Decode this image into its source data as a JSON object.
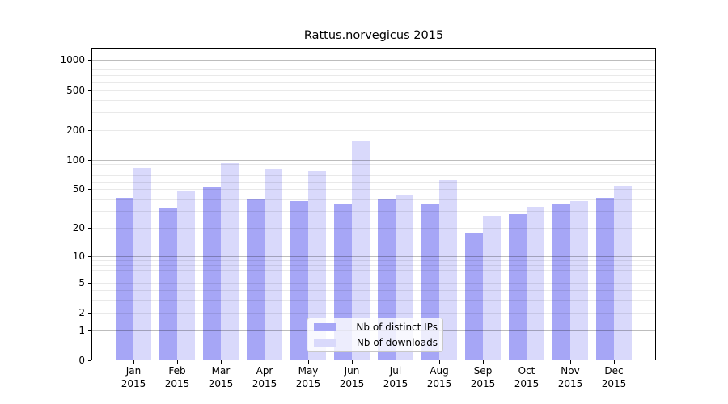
{
  "chart_data": {
    "type": "bar",
    "title": "Rattus.norvegicus 2015",
    "months": [
      "Jan",
      "Feb",
      "Mar",
      "Apr",
      "May",
      "Jun",
      "Jul",
      "Aug",
      "Sep",
      "Oct",
      "Nov",
      "Dec"
    ],
    "year": "2015",
    "yscale": "log1p",
    "ylim": [
      0,
      1305
    ],
    "y_tick_values": [
      0,
      1,
      2,
      5,
      10,
      20,
      50,
      100,
      200,
      500,
      1000
    ],
    "grid": {
      "major_decades": [
        1,
        10,
        100,
        1000
      ],
      "minor_on": true,
      "orientation": "horizontal"
    },
    "series": [
      {
        "name": "Nb of distinct IPs",
        "color": "#a6a6f6",
        "values": [
          41,
          32,
          52,
          40,
          38,
          36,
          40,
          36,
          18,
          28,
          35,
          41
        ]
      },
      {
        "name": "Nb of downloads",
        "color": "#d9d9fb",
        "values": [
          82,
          49,
          92,
          81,
          77,
          153,
          44,
          62,
          27,
          33,
          38,
          54
        ]
      }
    ],
    "legend": {
      "position": "bottom-center",
      "entries": [
        "Nb of distinct IPs",
        "Nb of downloads"
      ]
    }
  },
  "colors": {
    "bar_distinct_ips": "#a6a6f6",
    "bar_downloads": "#d9d9fb",
    "major_grid": "rgba(0,0,0,0.26)",
    "minor_grid": "rgba(0,0,0,0.085)",
    "spine": "#000000",
    "background": "#ffffff"
  }
}
